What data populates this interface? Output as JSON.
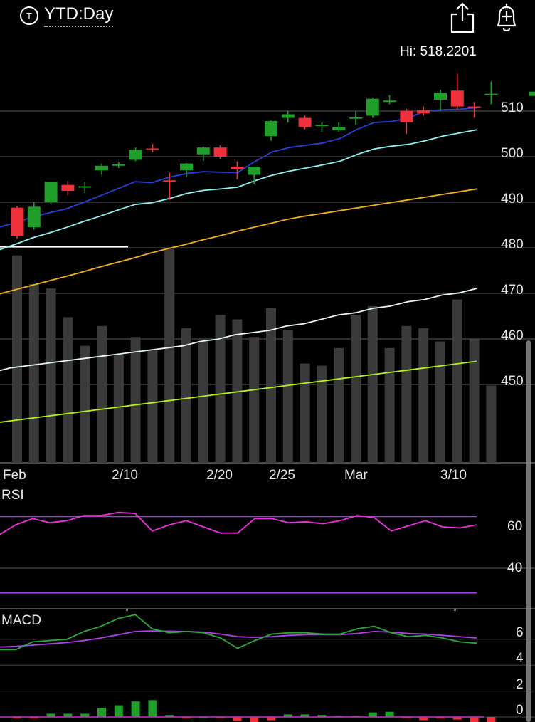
{
  "header": {
    "title": "YTD:Day",
    "share_icon": "share-icon",
    "alert_icon": "bell-plus-icon",
    "symbol_icon": "ticker-circle-icon",
    "symbol_glyph": "T"
  },
  "hi_label": "Hi: 518.2201",
  "colors": {
    "up": "#1f9e2a",
    "down": "#f0303a",
    "ema_short": "#2b3fd6",
    "ema_mid": "#8ff0f0",
    "sma_long": "#f0b020",
    "vol_avg1": "#e6f4f8",
    "vol_avg2": "#b6f01a",
    "rsi": "#f030e0",
    "rsi_bands": "#a040e0",
    "macd": "#2aa83a",
    "signal": "#b040e8",
    "volume": "#3a3a3a"
  },
  "chart_data": [
    {
      "type": "candlestick",
      "title": "",
      "y_ticks": [
        510,
        500,
        490,
        480,
        470,
        460,
        450
      ],
      "ylim": [
        448.5,
        513.5
      ],
      "x_ticks": [
        "Feb",
        "2/10",
        "2/20",
        "2/25",
        "Mar",
        "3/10"
      ],
      "candles": [
        {
          "o": 488.8,
          "h": 489.2,
          "l": 482.0,
          "c": 482.6
        },
        {
          "o": 484.5,
          "h": 490.0,
          "l": 484.0,
          "c": 489.0
        },
        {
          "o": 490.0,
          "h": 494.5,
          "l": 489.5,
          "c": 494.5
        },
        {
          "o": 493.8,
          "h": 494.7,
          "l": 491.5,
          "c": 492.5
        },
        {
          "o": 493.2,
          "h": 494.5,
          "l": 492.0,
          "c": 493.5
        },
        {
          "o": 497.0,
          "h": 498.5,
          "l": 496.0,
          "c": 498.0
        },
        {
          "o": 498.0,
          "h": 498.8,
          "l": 497.5,
          "c": 498.3
        },
        {
          "o": 499.3,
          "h": 502.0,
          "l": 499.0,
          "c": 501.5
        },
        {
          "o": 501.8,
          "h": 502.8,
          "l": 501.0,
          "c": 501.7
        },
        {
          "o": 494.8,
          "h": 496.5,
          "l": 490.5,
          "c": 494.5
        },
        {
          "o": 497.0,
          "h": 498.6,
          "l": 495.5,
          "c": 498.5
        },
        {
          "o": 500.5,
          "h": 502.2,
          "l": 499.0,
          "c": 502.0
        },
        {
          "o": 502.0,
          "h": 502.5,
          "l": 499.5,
          "c": 500.0
        },
        {
          "o": 497.8,
          "h": 499.0,
          "l": 495.0,
          "c": 497.2
        },
        {
          "o": 496.0,
          "h": 497.5,
          "l": 494.0,
          "c": 497.8
        },
        {
          "o": 504.5,
          "h": 508.0,
          "l": 503.5,
          "c": 507.8
        },
        {
          "o": 508.5,
          "h": 510.0,
          "l": 507.5,
          "c": 509.3
        },
        {
          "o": 508.5,
          "h": 509.0,
          "l": 506.0,
          "c": 506.5
        },
        {
          "o": 506.8,
          "h": 507.5,
          "l": 505.5,
          "c": 507.0
        },
        {
          "o": 505.8,
          "h": 507.5,
          "l": 505.5,
          "c": 506.5
        },
        {
          "o": 508.5,
          "h": 510.0,
          "l": 507.0,
          "c": 508.6
        },
        {
          "o": 509.0,
          "h": 513.0,
          "l": 508.5,
          "c": 512.7
        },
        {
          "o": 512.0,
          "h": 513.5,
          "l": 511.5,
          "c": 512.3
        },
        {
          "o": 510.0,
          "h": 510.5,
          "l": 505.0,
          "c": 507.5
        },
        {
          "o": 510.2,
          "h": 511.0,
          "l": 509.0,
          "c": 509.5
        },
        {
          "o": 512.5,
          "h": 514.7,
          "l": 510.0,
          "c": 514.0
        },
        {
          "o": 514.5,
          "h": 518.2,
          "l": 510.5,
          "c": 511.0
        },
        {
          "o": 511.0,
          "h": 512.0,
          "l": 508.5,
          "c": 510.8
        },
        {
          "o": 513.8,
          "h": 516.5,
          "l": 511.5,
          "c": 513.8
        }
      ],
      "ema_short": [
        484.5,
        485.5,
        486.8,
        487.7,
        488.6,
        490.0,
        491.5,
        493.0,
        494.5,
        494.3,
        495.5,
        496.3,
        496.7,
        496.6,
        496.5,
        498.9,
        501.0,
        502.0,
        502.5,
        503.0,
        504.0,
        506.0,
        507.5,
        507.7,
        508.5,
        510.0,
        510.3,
        510.4,
        510.7
      ],
      "ema_mid": [
        479.5,
        480.8,
        482.2,
        483.3,
        484.5,
        485.8,
        487.0,
        488.3,
        489.5,
        489.9,
        490.8,
        491.9,
        492.6,
        492.9,
        493.3,
        494.7,
        495.9,
        496.8,
        497.5,
        498.2,
        499.0,
        500.5,
        501.7,
        502.3,
        502.7,
        503.5,
        504.5,
        505.2,
        505.9
      ],
      "sma_long": [
        469.5,
        470.5,
        471.5,
        472.5,
        473.5,
        474.5,
        475.6,
        476.6,
        477.6,
        478.7,
        479.7,
        480.6,
        481.6,
        482.5,
        483.5,
        484.4,
        485.3,
        486.2,
        486.9,
        487.5,
        488.1,
        488.7,
        489.3,
        489.9,
        490.5,
        491.1,
        491.7,
        492.3,
        492.9
      ],
      "hi": 518.2201,
      "vol_baseline": 480.2
    },
    {
      "type": "bar",
      "title": "",
      "volume": [
        0.94,
        0.81,
        0.79,
        0.66,
        0.53,
        0.62,
        0.49,
        0.57,
        0.51,
        0.97,
        0.61,
        0.55,
        0.67,
        0.65,
        0.57,
        0.7,
        0.6,
        0.45,
        0.44,
        0.52,
        0.67,
        0.71,
        0.52,
        0.62,
        0.61,
        0.55,
        0.74,
        0.56,
        0.35
      ],
      "vol_avg1": [
        0.41,
        0.43,
        0.44,
        0.45,
        0.46,
        0.47,
        0.48,
        0.49,
        0.5,
        0.51,
        0.52,
        0.53,
        0.55,
        0.56,
        0.58,
        0.59,
        0.6,
        0.62,
        0.63,
        0.65,
        0.67,
        0.68,
        0.7,
        0.71,
        0.73,
        0.74,
        0.76,
        0.77,
        0.79
      ],
      "vol_avg2": [
        0.18,
        0.19,
        0.2,
        0.21,
        0.22,
        0.23,
        0.24,
        0.25,
        0.26,
        0.27,
        0.28,
        0.29,
        0.3,
        0.31,
        0.32,
        0.33,
        0.34,
        0.35,
        0.36,
        0.37,
        0.38,
        0.39,
        0.4,
        0.41,
        0.42,
        0.43,
        0.44,
        0.45,
        0.46
      ]
    },
    {
      "type": "line",
      "title": "RSI",
      "y_ticks": [
        60,
        40
      ],
      "ylim": [
        25,
        75
      ],
      "bands": [
        65,
        28
      ],
      "rsi": [
        56,
        61,
        64,
        62,
        63,
        65.5,
        65.5,
        67,
        66.5,
        58,
        61,
        63,
        60,
        57,
        57,
        64,
        64,
        62,
        62.5,
        61.5,
        63,
        65.5,
        64.5,
        58,
        60.5,
        63,
        60,
        59.5,
        61
      ]
    },
    {
      "type": "line",
      "title": "MACD",
      "y_ticks": [
        6,
        4,
        2,
        0
      ],
      "ylim": [
        -0.2,
        8
      ],
      "macd": [
        5.2,
        5.2,
        5.8,
        5.9,
        6.0,
        6.6,
        7.0,
        7.6,
        7.9,
        6.8,
        6.5,
        6.6,
        6.5,
        6.1,
        5.3,
        5.9,
        6.4,
        6.5,
        6.5,
        6.4,
        6.4,
        6.8,
        7.0,
        6.5,
        6.2,
        6.3,
        6.1,
        5.8,
        5.7
      ],
      "signal": [
        5.4,
        5.45,
        5.55,
        5.65,
        5.75,
        5.9,
        6.1,
        6.35,
        6.6,
        6.65,
        6.62,
        6.6,
        6.55,
        6.4,
        6.2,
        6.15,
        6.2,
        6.3,
        6.35,
        6.35,
        6.35,
        6.45,
        6.6,
        6.55,
        6.45,
        6.4,
        6.3,
        6.2,
        6.1
      ],
      "hist": [
        -0.1,
        -0.1,
        0.25,
        0.25,
        0.25,
        0.7,
        0.9,
        1.2,
        1.3,
        0.15,
        -0.1,
        0,
        -0.05,
        -0.3,
        -0.9,
        -0.25,
        0.2,
        0.2,
        0.15,
        0.05,
        0.05,
        0.35,
        0.4,
        -0.05,
        -0.25,
        -0.1,
        -0.2,
        -0.4,
        -0.4
      ]
    }
  ]
}
